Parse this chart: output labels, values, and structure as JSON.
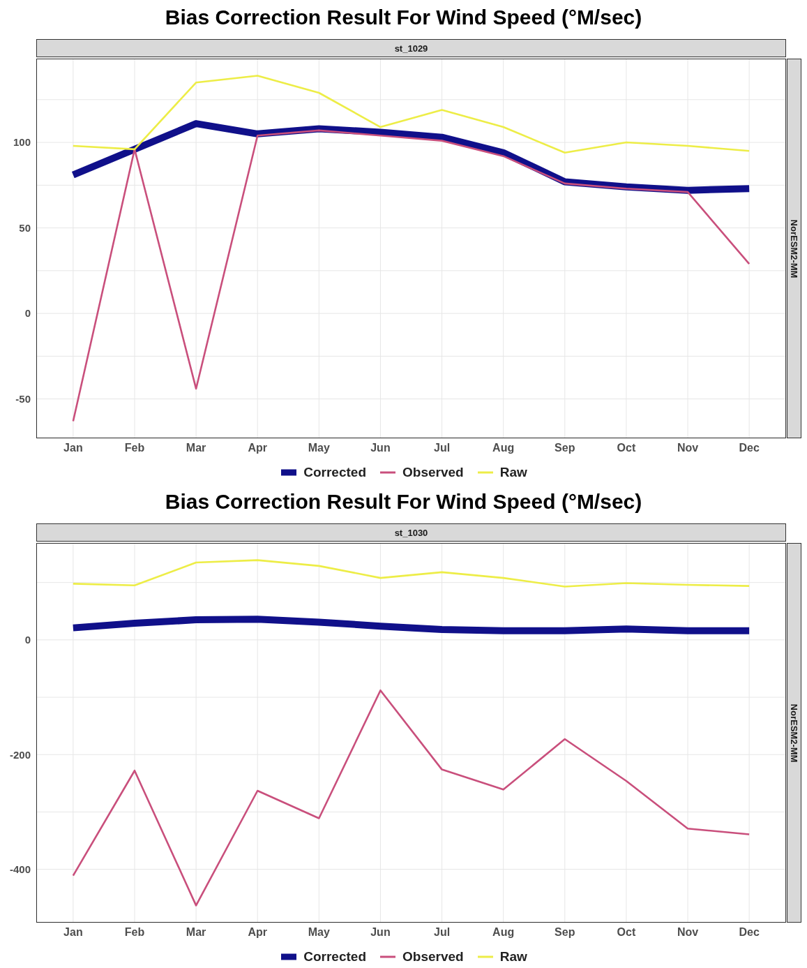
{
  "chart_data": [
    {
      "type": "line",
      "title": "Bias Correction Result For Wind Speed (°M/sec)",
      "annotations": [
        "st_1029",
        "NorESM2-MM"
      ],
      "categories": [
        "Jan",
        "Feb",
        "Mar",
        "Apr",
        "May",
        "Jun",
        "Jul",
        "Aug",
        "Sep",
        "Oct",
        "Nov",
        "Dec"
      ],
      "series": [
        {
          "name": "Corrected",
          "color": "#10108a",
          "values": [
            81,
            96,
            111,
            105,
            108,
            106,
            103,
            94,
            77,
            74,
            72,
            73
          ]
        },
        {
          "name": "Observed",
          "color": "#c94f7c",
          "values": [
            -63,
            96,
            -44,
            104,
            107,
            104,
            101,
            92,
            76,
            73,
            71,
            29
          ]
        },
        {
          "name": "Raw",
          "color": "#eded47",
          "values": [
            98,
            96,
            135,
            139,
            129,
            109,
            119,
            109,
            94,
            100,
            98,
            95
          ]
        }
      ],
      "ylim": [
        -73,
        149
      ],
      "yticks": [
        -50,
        {
          "value": -25,
          "label": null
        },
        0,
        {
          "value": 25,
          "label": null
        },
        50,
        {
          "value": 75,
          "label": null
        },
        100,
        {
          "value": 125,
          "label": null
        }
      ],
      "grid": true,
      "legend": "bottom",
      "marker": "none",
      "line_style": "solid"
    },
    {
      "type": "line",
      "title": "Bias Correction Result For Wind Speed (°M/sec)",
      "annotations": [
        "st_1030",
        "NorESM2-MM"
      ],
      "categories": [
        "Jan",
        "Feb",
        "Mar",
        "Apr",
        "May",
        "Jun",
        "Jul",
        "Aug",
        "Sep",
        "Oct",
        "Nov",
        "Dec"
      ],
      "series": [
        {
          "name": "Corrected",
          "color": "#10108a",
          "values": [
            21,
            29,
            35,
            36,
            31,
            24,
            18,
            16,
            16,
            19,
            16,
            16
          ]
        },
        {
          "name": "Observed",
          "color": "#c94f7c",
          "values": [
            -411,
            -228,
            -463,
            -263,
            -311,
            -88,
            -226,
            -261,
            -173,
            -246,
            -329,
            -339
          ]
        },
        {
          "name": "Raw",
          "color": "#eded47",
          "values": [
            98,
            95,
            135,
            139,
            129,
            108,
            118,
            108,
            93,
            99,
            96,
            94
          ]
        }
      ],
      "ylim": [
        -493,
        169
      ],
      "yticks": [
        -400,
        {
          "value": -300,
          "label": null
        },
        -200,
        {
          "value": -100,
          "label": null
        },
        0,
        {
          "value": 100,
          "label": null
        }
      ],
      "grid": true,
      "legend": "bottom",
      "marker": "none",
      "line_style": "solid"
    }
  ]
}
